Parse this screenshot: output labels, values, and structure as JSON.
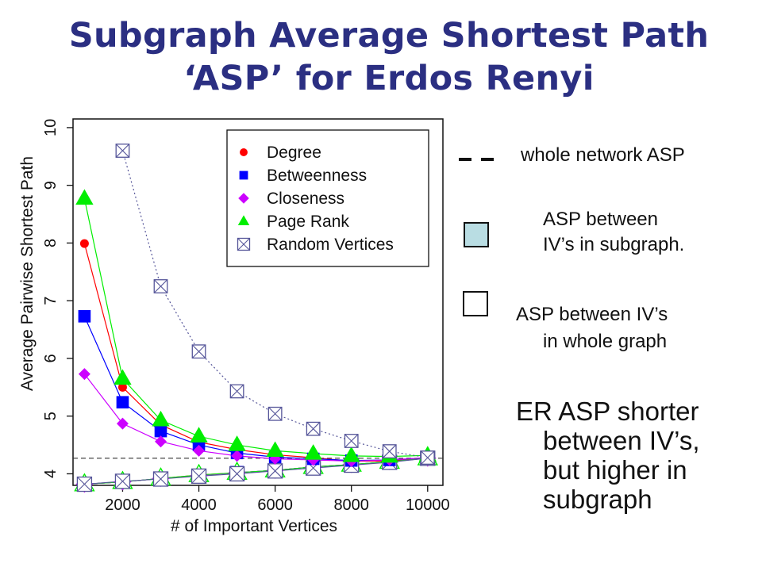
{
  "title": {
    "line1": "Subgraph Average Shortest Path",
    "line2": "‘ASP’ for Erdos Renyi"
  },
  "side_notes": {
    "whole_network": "whole network ASP",
    "subgraph_line1": "ASP between",
    "subgraph_line2": "IV’s in subgraph.",
    "whole_graph_line1": "ASP between IV’s",
    "whole_graph_line2": "in whole graph",
    "note_line1": "ER ASP shorter",
    "note_line2": "between IV’s,",
    "note_line3": "but higher in",
    "note_line4": "subgraph"
  },
  "colors": {
    "title": "#2b2f82",
    "degree": "#ff0000",
    "betweenness": "#0000ff",
    "closeness": "#cc00ff",
    "page_rank": "#00ee00",
    "random": "#555599",
    "swatch_fill": "#b9dde3"
  },
  "chart_data": {
    "type": "line",
    "xlabel": "# of Important Vertices",
    "ylabel": "Average Pairwise Shortest Path",
    "xlim": [
      700,
      10400
    ],
    "ylim": [
      3.8,
      10.15
    ],
    "xticks": [
      2000,
      4000,
      6000,
      8000,
      10000
    ],
    "yticks": [
      4,
      5,
      6,
      7,
      8,
      9,
      10
    ],
    "legend_position": "top-right",
    "whole_network_asp": 4.27,
    "x": [
      1000,
      2000,
      3000,
      4000,
      5000,
      6000,
      7000,
      8000,
      9000,
      10000
    ],
    "series": [
      {
        "name": "Degree",
        "marker": "circle",
        "color": "#ff0000",
        "subgraph": [
          7.99,
          5.5,
          4.85,
          4.55,
          4.42,
          4.33,
          4.28,
          4.22,
          4.22,
          4.28
        ],
        "whole": [
          3.82,
          3.86,
          3.92,
          3.98,
          4.02,
          4.06,
          4.12,
          4.16,
          4.21,
          4.27
        ]
      },
      {
        "name": "Betweenness",
        "marker": "square",
        "color": "#0000ff",
        "subgraph": [
          6.73,
          5.24,
          4.74,
          4.5,
          4.36,
          4.29,
          4.26,
          4.23,
          4.24,
          4.28
        ],
        "whole": [
          3.82,
          3.86,
          3.92,
          3.97,
          4.02,
          4.06,
          4.12,
          4.16,
          4.21,
          4.27
        ]
      },
      {
        "name": "Closeness",
        "marker": "diamond",
        "color": "#cc00ff",
        "subgraph": [
          5.73,
          4.87,
          4.56,
          4.4,
          4.31,
          4.26,
          4.24,
          4.22,
          4.24,
          4.28
        ],
        "whole": [
          3.82,
          3.86,
          3.92,
          3.97,
          4.02,
          4.06,
          4.12,
          4.16,
          4.21,
          4.27
        ]
      },
      {
        "name": "Page Rank",
        "marker": "triangle",
        "color": "#00ee00",
        "subgraph": [
          8.77,
          5.65,
          4.93,
          4.65,
          4.5,
          4.4,
          4.35,
          4.31,
          4.3,
          4.32
        ],
        "whole": [
          3.82,
          3.86,
          3.92,
          3.98,
          4.02,
          4.06,
          4.12,
          4.16,
          4.21,
          4.27
        ]
      },
      {
        "name": "Random Vertices",
        "marker": "boxx",
        "color": "#555599",
        "subgraph_x": [
          2000,
          3000,
          4000,
          5000,
          6000,
          7000,
          8000,
          9000,
          10000
        ],
        "subgraph": [
          9.6,
          7.25,
          6.12,
          5.43,
          5.04,
          4.78,
          4.57,
          4.39,
          4.28
        ],
        "whole_x": [
          1000,
          2000,
          3000,
          4000,
          5000,
          6000,
          7000,
          8000,
          9000,
          10000
        ],
        "whole": [
          3.82,
          3.87,
          3.91,
          3.96,
          4.0,
          4.05,
          4.1,
          4.15,
          4.2,
          4.27
        ]
      }
    ]
  }
}
